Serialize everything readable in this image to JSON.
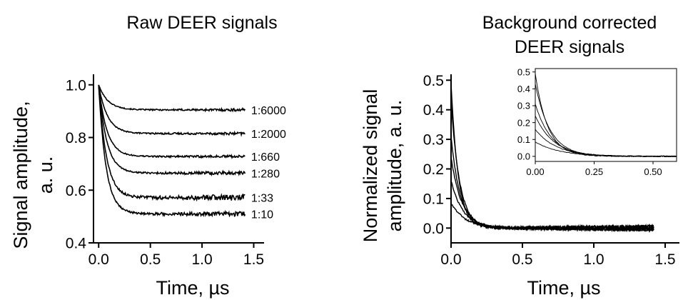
{
  "chart_data": [
    {
      "type": "line",
      "title": "Raw DEER signals",
      "xlabel": "Time, µs",
      "ylabel": "Signal amplitude, a. u.",
      "xlim": [
        -0.05,
        1.6
      ],
      "ylim": [
        0.4,
        1.04
      ],
      "xticks": [
        0.0,
        0.5,
        1.0,
        1.5
      ],
      "xtick_labels": [
        "0.0",
        "0.5",
        "1.0",
        "1.5"
      ],
      "yticks": [
        0.4,
        0.6,
        0.8,
        1.0
      ],
      "ytick_labels": [
        "0.4",
        "0.6",
        "0.8",
        "1.0"
      ],
      "grid": false,
      "x_end": 1.42,
      "series": [
        {
          "name": "1:6000",
          "start": 1.0,
          "plateau": 0.905,
          "tau": 0.09,
          "noise": 0.003
        },
        {
          "name": "1:2000",
          "start": 1.0,
          "plateau": 0.815,
          "tau": 0.085,
          "noise": 0.003
        },
        {
          "name": "1:660",
          "start": 1.0,
          "plateau": 0.728,
          "tau": 0.08,
          "noise": 0.003
        },
        {
          "name": "1:280",
          "start": 1.0,
          "plateau": 0.665,
          "tau": 0.078,
          "noise": 0.004
        },
        {
          "name": "1:33",
          "start": 1.0,
          "plateau": 0.572,
          "tau": 0.075,
          "noise": 0.007
        },
        {
          "name": "1:10",
          "start": 1.0,
          "plateau": 0.51,
          "tau": 0.072,
          "noise": 0.005
        }
      ]
    },
    {
      "type": "line",
      "title": "Background corrected DEER signals",
      "title_lines": [
        "Background corrected",
        "DEER signals"
      ],
      "xlabel": "Time, µs",
      "ylabel": "Normalized signal amplitude, a. u.",
      "ylabel_lines": [
        "Normalized signal",
        "amplitude, a. u."
      ],
      "xlim": [
        0.0,
        1.6
      ],
      "ylim": [
        -0.05,
        0.52
      ],
      "xticks": [
        0.0,
        0.5,
        1.0,
        1.5
      ],
      "xtick_labels": [
        "0.0",
        "0.5",
        "1.0",
        "1.5"
      ],
      "yticks": [
        0.0,
        0.1,
        0.2,
        0.3,
        0.4,
        0.5
      ],
      "ytick_labels": [
        "0.0",
        "0.1",
        "0.2",
        "0.3",
        "0.4",
        "0.5"
      ],
      "grid": false,
      "x_end": 1.42,
      "series": [
        {
          "start": 0.49,
          "tau": 0.05,
          "noise": 0.006
        },
        {
          "start": 0.43,
          "tau": 0.06,
          "noise": 0.006
        },
        {
          "start": 0.31,
          "tau": 0.065,
          "noise": 0.006
        },
        {
          "start": 0.24,
          "tau": 0.075,
          "noise": 0.006
        },
        {
          "start": 0.16,
          "tau": 0.085,
          "noise": 0.006
        },
        {
          "start": 0.085,
          "tau": 0.1,
          "noise": 0.006
        }
      ],
      "inset": {
        "xlim": [
          0.0,
          0.6
        ],
        "ylim": [
          -0.03,
          0.52
        ],
        "xticks": [
          0.0,
          0.25,
          0.5
        ],
        "xtick_labels": [
          "0.00",
          "0.25",
          "0.50"
        ],
        "yticks": [
          0.0,
          0.1,
          0.2,
          0.3,
          0.4,
          0.5
        ],
        "ytick_labels": [
          "0.0",
          "0.1",
          "0.2",
          "0.3",
          "0.4",
          "0.5"
        ],
        "x_end": 0.6
      }
    }
  ]
}
